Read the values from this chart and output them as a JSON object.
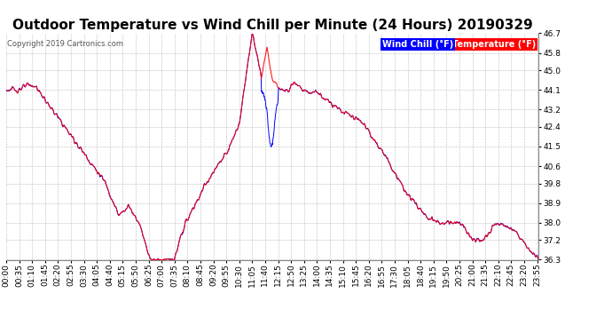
{
  "title": "Outdoor Temperature vs Wind Chill per Minute (24 Hours) 20190329",
  "copyright": "Copyright 2019 Cartronics.com",
  "ylim": [
    36.3,
    46.7
  ],
  "yticks": [
    36.3,
    37.2,
    38.0,
    38.9,
    39.8,
    40.6,
    41.5,
    42.4,
    43.2,
    44.1,
    45.0,
    45.8,
    46.7
  ],
  "bg_color": "#ffffff",
  "grid_color": "#bbbbbb",
  "temp_color": "#ff0000",
  "wind_color": "#0000ff",
  "title_fontsize": 11,
  "copyright_fontsize": 6,
  "axis_fontsize": 6.5,
  "tick_interval_minutes": 35
}
